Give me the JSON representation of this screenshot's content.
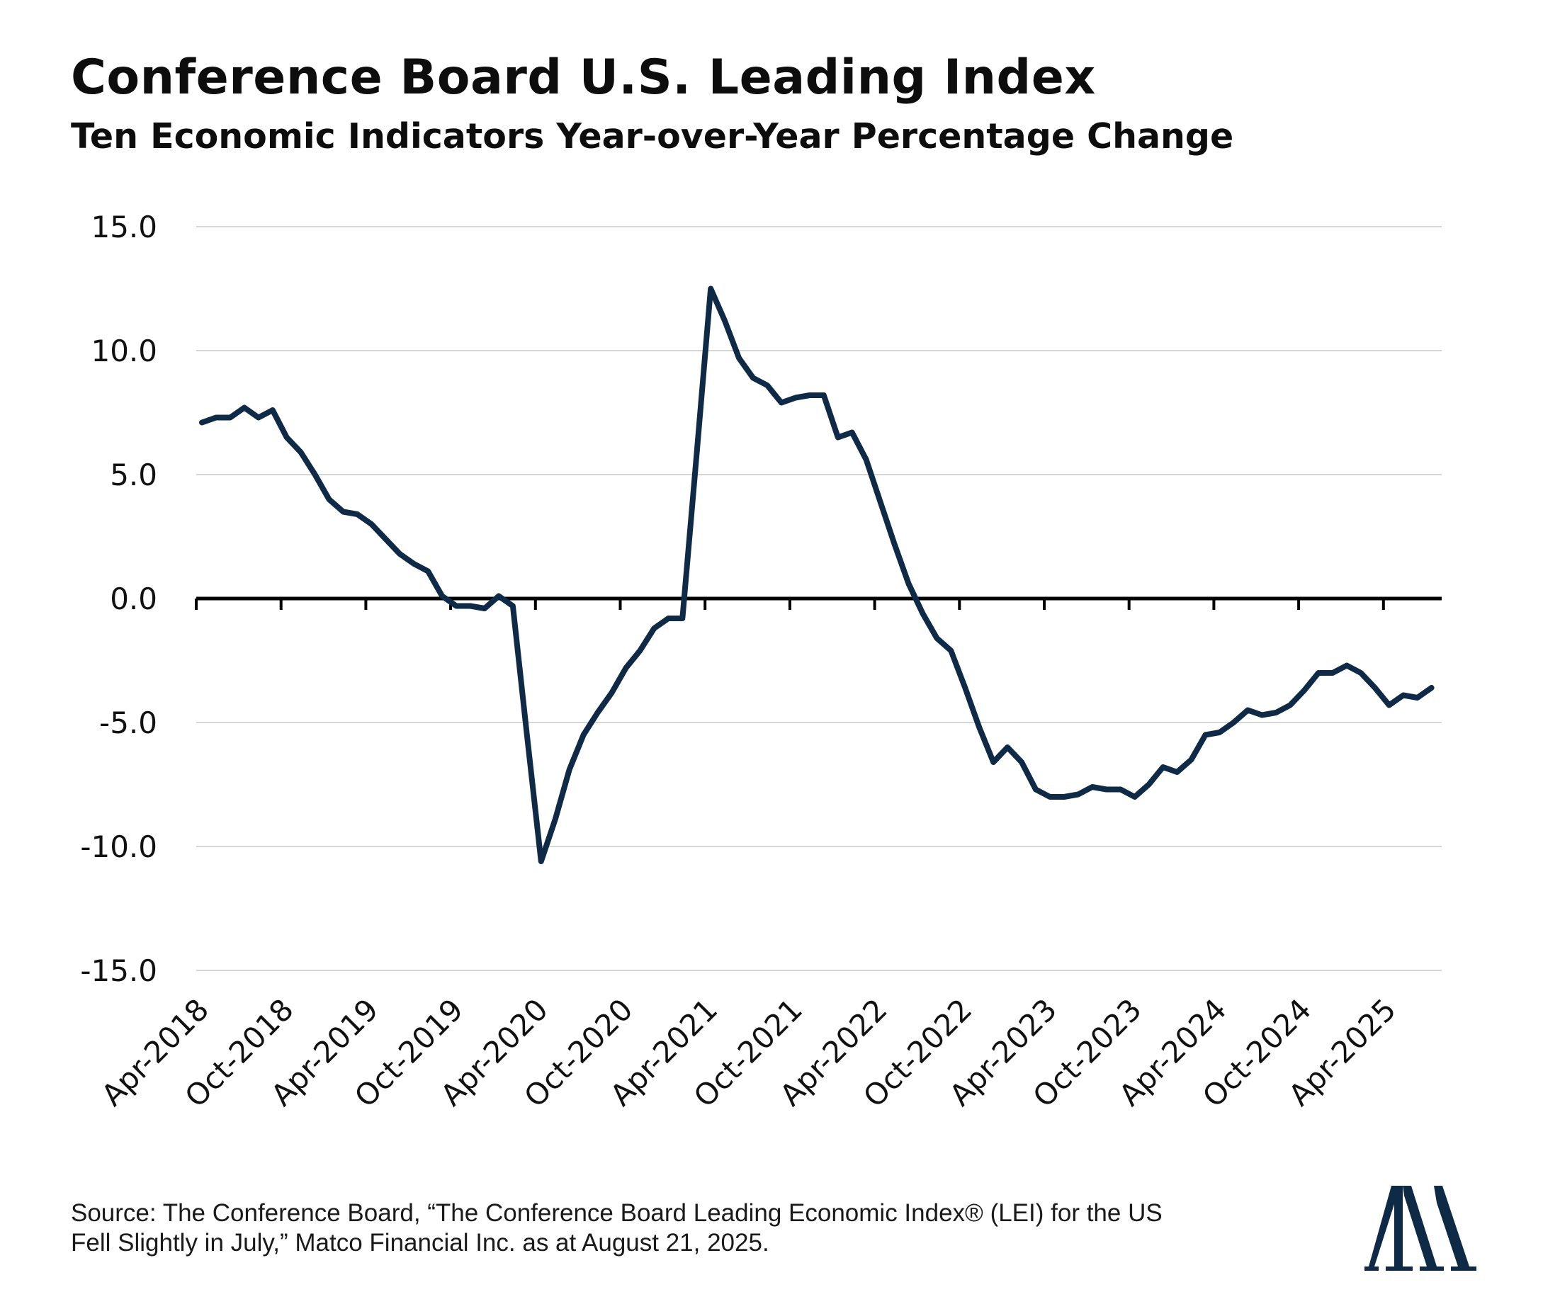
{
  "header": {
    "title": "Conference Board U.S. Leading Index",
    "subtitle": "Ten Economic Indicators Year-over-Year Percentage Change"
  },
  "source": {
    "line1": "Source: The Conference Board, “The Conference Board Leading Economic Index® (LEI) for the US",
    "line2": "Fell Slightly in July,” Matco Financial Inc. as at August 21, 2025."
  },
  "logo": {
    "icon": "matco-double-a-logo-icon",
    "color": "#0e2a47"
  },
  "chart_data": {
    "type": "line",
    "title": "Conference Board U.S. Leading Index",
    "subtitle": "Ten Economic Indicators Year-over-Year Percentage Change",
    "xlabel": "",
    "ylabel": "",
    "ylim": [
      -15,
      15
    ],
    "yticks": [
      15,
      10,
      5,
      0,
      -5,
      -10,
      -15
    ],
    "ytick_labels": [
      "15.0",
      "10.0",
      "5.0",
      "0.0",
      "-5.0",
      "-10.0",
      "-15.0"
    ],
    "x_tick_labels": [
      "Apr-2018",
      "Oct-2018",
      "Apr-2019",
      "Oct-2019",
      "Apr-2020",
      "Oct-2020",
      "Apr-2021",
      "Oct-2021",
      "Apr-2022",
      "Oct-2022",
      "Apr-2023",
      "Oct-2023",
      "Apr-2024",
      "Oct-2024",
      "Apr-2025"
    ],
    "x_start": "Apr-2018",
    "grid": true,
    "line_color": "#0e2a47",
    "series": [
      {
        "values": [
          7.1,
          7.3,
          7.3,
          7.7,
          7.3,
          7.6,
          6.5,
          5.9,
          5.0,
          4.0,
          3.5,
          3.4,
          3.0,
          2.4,
          1.8,
          1.4,
          1.1,
          0.1,
          -0.3,
          -0.3,
          -0.4,
          0.1,
          -0.3,
          -5.5,
          -10.6,
          -8.9,
          -6.9,
          -5.5,
          -4.6,
          -3.8,
          -2.8,
          -2.1,
          -1.2,
          -0.8,
          -0.8,
          5.8,
          12.5,
          11.2,
          9.7,
          8.9,
          8.6,
          7.9,
          8.1,
          8.2,
          8.2,
          6.5,
          6.7,
          5.6,
          3.9,
          2.2,
          0.6,
          -0.6,
          -1.6,
          -2.1,
          -3.6,
          -5.2,
          -6.6,
          -6.0,
          -6.6,
          -7.7,
          -8.0,
          -8.0,
          -7.9,
          -7.6,
          -7.7,
          -7.7,
          -8.0,
          -7.5,
          -6.8,
          -7.0,
          -6.5,
          -5.5,
          -5.4,
          -5.0,
          -4.5,
          -4.7,
          -4.6,
          -4.3,
          -3.7,
          -3.0,
          -3.0,
          -2.7,
          -3.0,
          -3.6,
          -4.3,
          -3.9,
          -4.0,
          -3.6
        ]
      }
    ]
  }
}
